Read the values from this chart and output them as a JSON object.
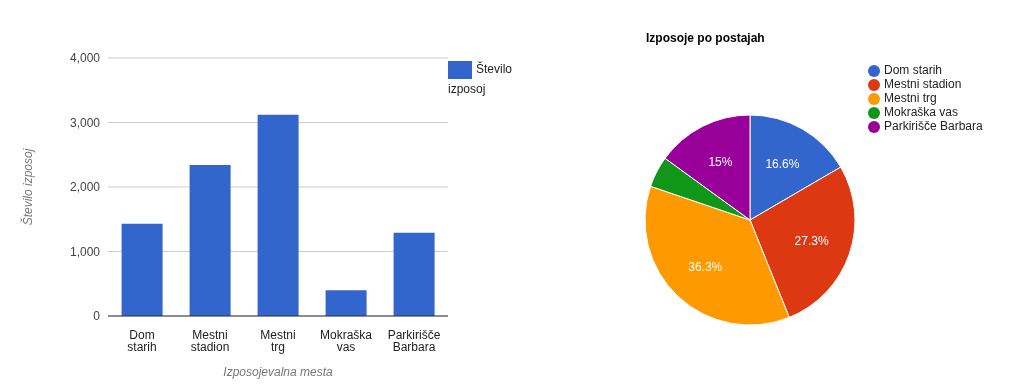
{
  "chart_data": [
    {
      "type": "bar",
      "categories": [
        "Dom starih",
        "Mestni stadion",
        "Mestni trg",
        "Mokraška vas",
        "Parkirišče Barbara"
      ],
      "series": [
        {
          "name": "Število izposoj",
          "color": "#3366cc",
          "values": [
            1430,
            2340,
            3120,
            400,
            1290
          ]
        }
      ],
      "xlabel": "Izposojevalna mesta",
      "ylabel": "Število izposoj",
      "ylim": [
        0,
        4000
      ],
      "yticks": [
        {
          "value": 0,
          "label": "0"
        },
        {
          "value": 1000,
          "label": "1,000"
        },
        {
          "value": 2000,
          "label": "2,000"
        },
        {
          "value": 3000,
          "label": "3,000"
        },
        {
          "value": 4000,
          "label": "4,000"
        }
      ],
      "grid": "y",
      "legend": "top right"
    },
    {
      "type": "pie",
      "title": "Izposoje po postajah",
      "categories": [
        "Dom starih",
        "Mestni stadion",
        "Mestni trg",
        "Mokraška vas",
        "Parkirišče Barbara"
      ],
      "values": [
        16.6,
        27.3,
        36.3,
        4.8,
        15
      ],
      "colors": [
        "#3366cc",
        "#dc3912",
        "#ff9900",
        "#109618",
        "#990099"
      ],
      "value_labels": [
        "16.6%",
        "27.3%",
        "36.3%",
        null,
        "15%"
      ],
      "legend": "right"
    }
  ]
}
